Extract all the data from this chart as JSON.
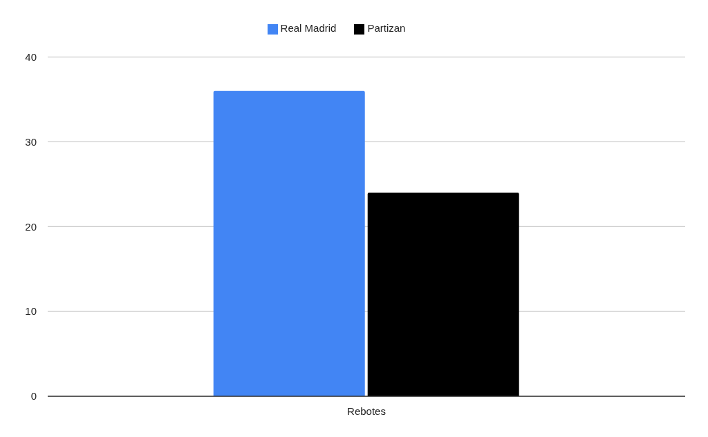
{
  "chart_data": {
    "type": "bar",
    "categories": [
      "Rebotes"
    ],
    "series": [
      {
        "name": "Real Madrid",
        "color": "#4285f4",
        "values": [
          36
        ]
      },
      {
        "name": "Partizan",
        "color": "#000000",
        "values": [
          24
        ]
      }
    ],
    "ylim": [
      0,
      40
    ],
    "yticks": [
      0,
      10,
      20,
      30,
      40
    ],
    "grid": "y",
    "legend": "top"
  }
}
